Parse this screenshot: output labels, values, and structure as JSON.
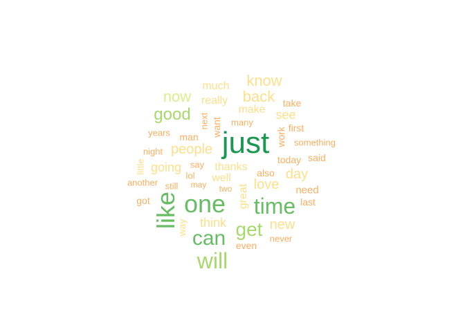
{
  "palette": {
    "dark_green": "#1a9850",
    "green": "#66bd63",
    "light_green": "#a6d96a",
    "pale_green": "#d9ef8b",
    "pale_yellow": "#fee08b",
    "light_orange": "#fdae61"
  },
  "words": [
    {
      "text": "just"
    },
    {
      "text": "one"
    },
    {
      "text": "like"
    },
    {
      "text": "time"
    },
    {
      "text": "can"
    },
    {
      "text": "will"
    },
    {
      "text": "get"
    },
    {
      "text": "good"
    },
    {
      "text": "now"
    },
    {
      "text": "know"
    },
    {
      "text": "back"
    },
    {
      "text": "people"
    },
    {
      "text": "new"
    },
    {
      "text": "love"
    },
    {
      "text": "day"
    },
    {
      "text": "see"
    },
    {
      "text": "going"
    },
    {
      "text": "make"
    },
    {
      "text": "much"
    },
    {
      "text": "think"
    },
    {
      "text": "thanks"
    },
    {
      "text": "really"
    },
    {
      "text": "well"
    },
    {
      "text": "work"
    },
    {
      "text": "want"
    },
    {
      "text": "great"
    },
    {
      "text": "need"
    },
    {
      "text": "today"
    },
    {
      "text": "first"
    },
    {
      "text": "man"
    },
    {
      "text": "take"
    },
    {
      "text": "last"
    },
    {
      "text": "way"
    },
    {
      "text": "even"
    },
    {
      "text": "got"
    },
    {
      "text": "said"
    },
    {
      "text": "also"
    },
    {
      "text": "many"
    },
    {
      "text": "next"
    },
    {
      "text": "something"
    },
    {
      "text": "years"
    },
    {
      "text": "night"
    },
    {
      "text": "little"
    },
    {
      "text": "say"
    },
    {
      "text": "lol"
    },
    {
      "text": "another"
    },
    {
      "text": "still"
    },
    {
      "text": "may"
    },
    {
      "text": "two"
    },
    {
      "text": "never"
    }
  ]
}
